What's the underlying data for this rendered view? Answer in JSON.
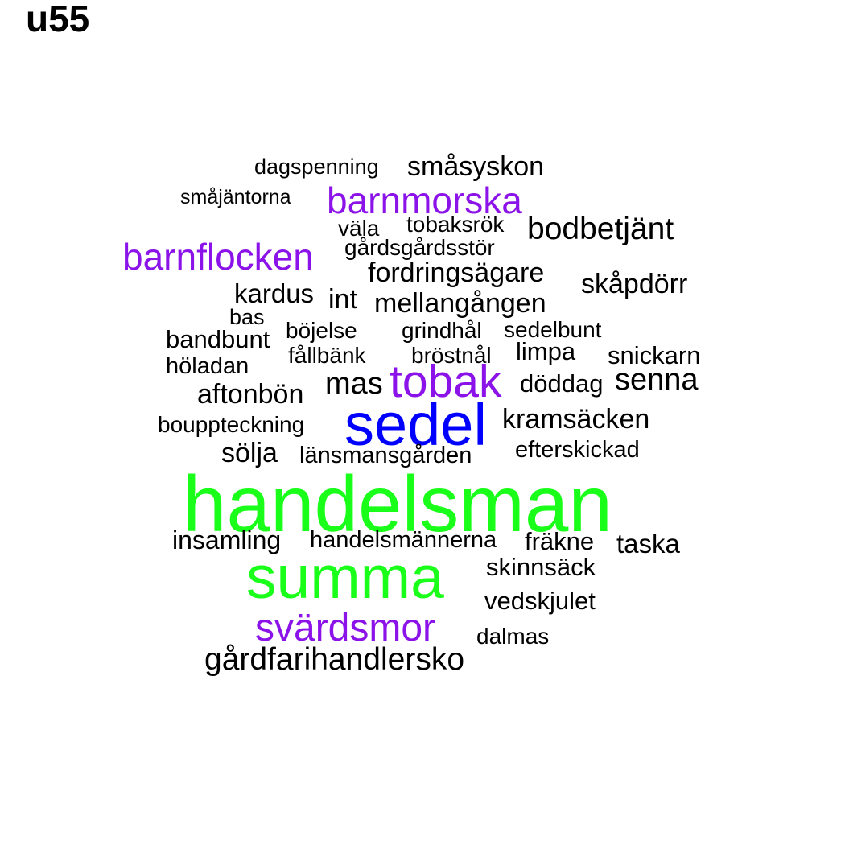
{
  "title": "u55",
  "colors": {
    "black": "#000000",
    "purple": "#8b12e8",
    "blue": "#0000ff",
    "green": "#1aff1a"
  },
  "words": {
    "w1": "dagspenning",
    "w2": "småsyskon",
    "w3": "småjäntorna",
    "w4": "barnmorska",
    "w5": "väla",
    "w6": "tobaksrök",
    "w7": "bodbetjänt",
    "w8": "barnflocken",
    "w9": "gårdsgårdsstör",
    "w10": "fordringsägare",
    "w11": "skåpdörr",
    "w12": "kardus",
    "w13": "int",
    "w14": "mellangången",
    "w15": "bas",
    "w16": "bandbunt",
    "w17": "böjelse",
    "w18": "grindhål",
    "w19": "sedelbunt",
    "w20": "limpa",
    "w21": "fållbänk",
    "w22": "bröstnål",
    "w23": "snickarn",
    "w24": "höladan",
    "w25": "mas",
    "w26": "tobak",
    "w27": "döddag",
    "w28": "senna",
    "w29": "aftonbön",
    "w30": "bouppteckning",
    "w31": "sedel",
    "w32": "kramsäcken",
    "w33": "sölja",
    "w34": "länsmansgården",
    "w35": "efterskickad",
    "w36": "handelsman",
    "w37": "insamling",
    "w38": "handelsmännerna",
    "w39": "fräkne",
    "w40": "taska",
    "w41": "summa",
    "w42": "skinnsäck",
    "w43": "vedskjulet",
    "w44": "svärdsmor",
    "w45": "dalmas",
    "w46": "gårdfarihandlersko"
  }
}
